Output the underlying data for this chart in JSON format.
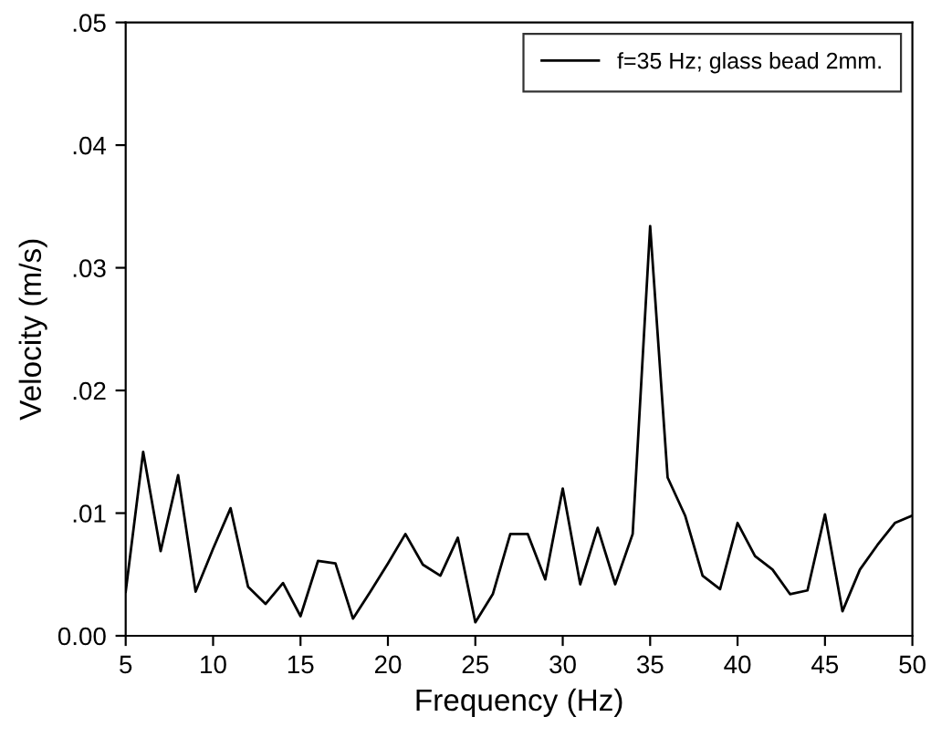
{
  "chart_data": {
    "type": "line",
    "xlabel": "Frequency (Hz)",
    "ylabel": "Velocity (m/s)",
    "x": [
      5,
      6,
      7,
      8,
      9,
      10,
      11,
      12,
      13,
      14,
      15,
      16,
      17,
      18,
      19,
      20,
      21,
      22,
      23,
      24,
      25,
      26,
      27,
      28,
      29,
      30,
      31,
      32,
      33,
      34,
      35,
      36,
      37,
      38,
      39,
      40,
      41,
      42,
      43,
      44,
      45,
      46,
      47,
      48,
      49,
      50
    ],
    "series": [
      {
        "name": "f=35 Hz; glass bead 2mm.",
        "color": "#000000",
        "values": [
          0.0036,
          0.015,
          0.0069,
          0.0131,
          0.0036,
          0.0071,
          0.0104,
          0.004,
          0.0026,
          0.0043,
          0.0016,
          0.0061,
          0.0059,
          0.0014,
          0.0036,
          0.0059,
          0.0083,
          0.0058,
          0.0049,
          0.008,
          0.0011,
          0.0034,
          0.0083,
          0.0083,
          0.0046,
          0.012,
          0.0042,
          0.0088,
          0.0042,
          0.0083,
          0.0334,
          0.0129,
          0.0098,
          0.0049,
          0.0038,
          0.0092,
          0.0065,
          0.0054,
          0.0034,
          0.0037,
          0.0099,
          0.002,
          0.0054,
          0.0074,
          0.0092,
          0.0098
        ]
      }
    ],
    "xlim": [
      5,
      50
    ],
    "ylim": [
      0,
      0.05
    ],
    "xticks": [
      5,
      10,
      15,
      20,
      25,
      30,
      35,
      40,
      45,
      50
    ],
    "yticks": [
      {
        "value": 0,
        "label": "0.00"
      },
      {
        "value": 0.01,
        "label": ".01"
      },
      {
        "value": 0.02,
        "label": ".02"
      },
      {
        "value": 0.03,
        "label": ".03"
      },
      {
        "value": 0.04,
        "label": ".04"
      },
      {
        "value": 0.05,
        "label": ".05"
      }
    ],
    "legend": "top right",
    "grid": false,
    "marker": "none",
    "line_style": "solid"
  }
}
